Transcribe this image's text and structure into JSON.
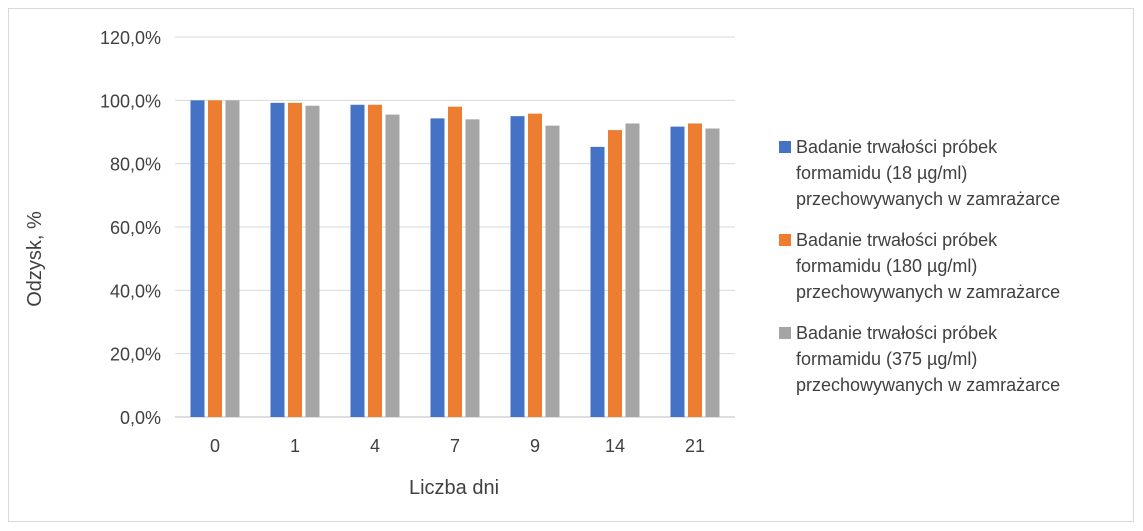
{
  "chart_data": {
    "type": "bar",
    "categories": [
      "0",
      "1",
      "4",
      "7",
      "9",
      "14",
      "21"
    ],
    "series": [
      {
        "name": "Badanie trwałości próbek formamidu (18 µg/ml) przechowywanych w zamrażarce",
        "name_lines": [
          "Badanie trwałości próbek",
          "formamidu (18 µg/ml)",
          "przechowywanych w zamrażarce"
        ],
        "color": "#4472c4",
        "values": [
          100.0,
          99.2,
          98.6,
          94.3,
          95.0,
          85.3,
          91.7
        ]
      },
      {
        "name": "Badanie trwałości próbek formamidu (180 µg/ml) przechowywanych w zamrażarce",
        "name_lines": [
          "Badanie trwałości próbek",
          "formamidu (180 µg/ml)",
          "przechowywanych w zamrażarce"
        ],
        "color": "#ed7d31",
        "values": [
          100.0,
          99.2,
          98.6,
          98.0,
          95.8,
          90.6,
          92.7
        ]
      },
      {
        "name": "Badanie trwałości próbek formamidu (375 µg/ml) przechowywanych w zamrażarce",
        "name_lines": [
          "Badanie trwałości próbek",
          "formamidu (375 µg/ml)",
          "przechowywanych w zamrażarce"
        ],
        "color": "#a5a5a5",
        "values": [
          100.0,
          98.3,
          95.5,
          94.0,
          92.0,
          92.7,
          91.1
        ]
      }
    ],
    "title": "",
    "xlabel": "Liczba dni",
    "ylabel": "Odzysk, %",
    "ylim": [
      0,
      120
    ],
    "yticks": [
      0,
      20,
      40,
      60,
      80,
      100,
      120
    ],
    "ytick_labels": [
      "0,0%",
      "20,0%",
      "40,0%",
      "60,0%",
      "80,0%",
      "100,0%",
      "120,0%"
    ],
    "grid": true,
    "legend_position": "right"
  }
}
